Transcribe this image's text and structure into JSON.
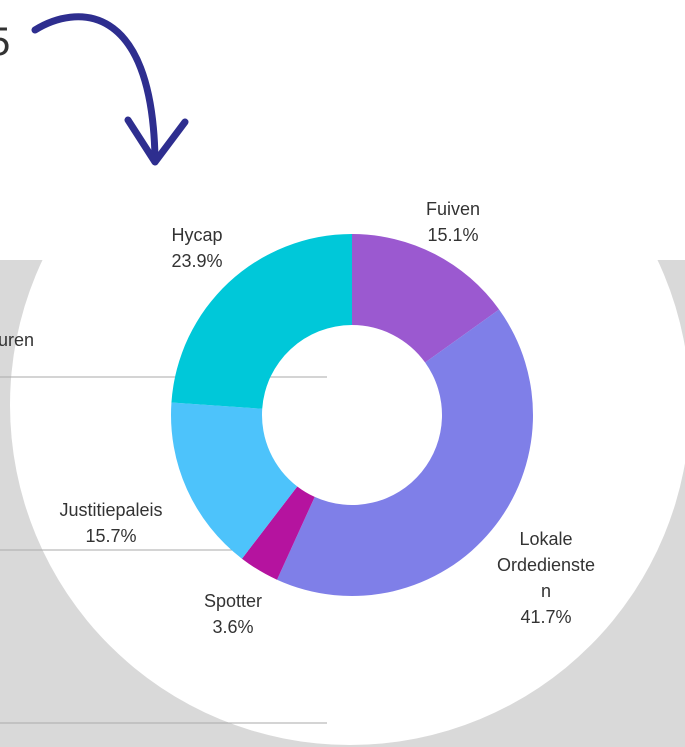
{
  "background_texts": [
    "5",
    "uren"
  ],
  "chart_data": {
    "type": "pie",
    "donut": true,
    "categories": [
      "Fuiven",
      "Lokale Ordediensten",
      "Spotter",
      "Justitiepaleis",
      "Hycap"
    ],
    "values": [
      15.1,
      41.7,
      3.6,
      15.7,
      23.9
    ],
    "value_labels": [
      "15.1%",
      "41.7%",
      "3.6%",
      "15.7%",
      "23.9%"
    ],
    "colors": [
      "#9b59d0",
      "#7f7fe8",
      "#b5139f",
      "#4dc3fb",
      "#00c8d9"
    ]
  }
}
